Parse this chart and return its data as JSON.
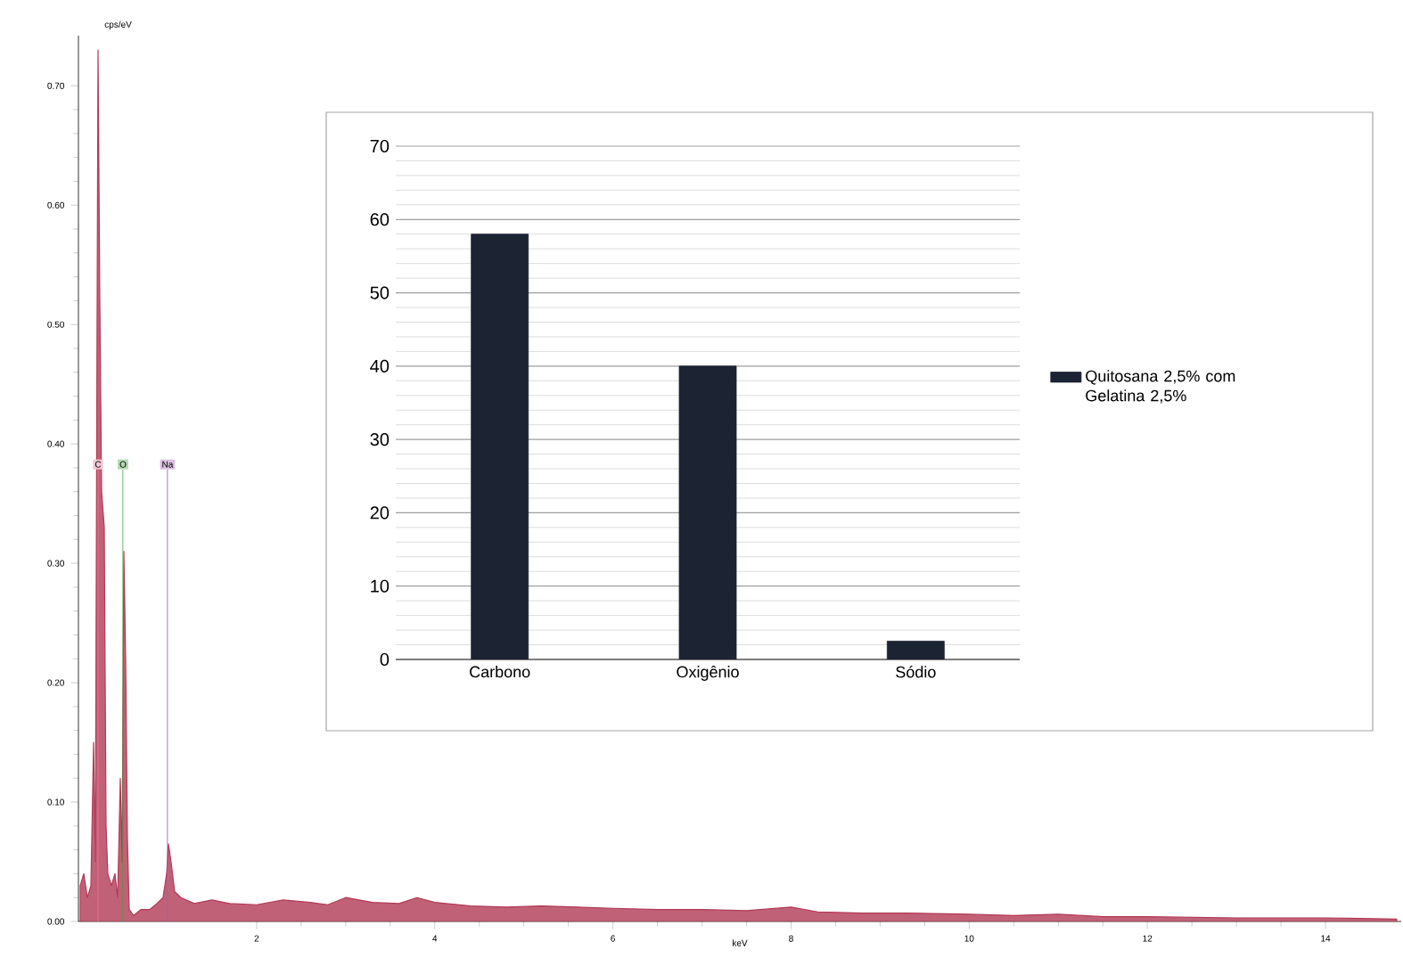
{
  "chart_data": [
    {
      "type": "area",
      "xlabel": "keV",
      "ylabel": "cps/eV",
      "color": "#b23a55",
      "xlim": [
        0,
        14.85
      ],
      "ylim": [
        0,
        0.742
      ],
      "xticks": [
        2,
        4,
        6,
        8,
        10,
        12,
        14
      ],
      "yticks": [
        {
          "value": 0,
          "label": "0.00"
        },
        {
          "value": 0.1,
          "label": "0.10"
        },
        {
          "value": 0.2,
          "label": "0.20"
        },
        {
          "value": 0.3,
          "label": "0.30"
        },
        {
          "value": 0.4,
          "label": "0.40"
        },
        {
          "value": 0.5,
          "label": "0.50"
        },
        {
          "value": 0.6,
          "label": "0.60"
        },
        {
          "value": 0.7,
          "label": "0.70"
        }
      ],
      "x": [
        0.02,
        0.06,
        0.1,
        0.14,
        0.17,
        0.19,
        0.21,
        0.22,
        0.24,
        0.26,
        0.29,
        0.31,
        0.33,
        0.37,
        0.41,
        0.44,
        0.47,
        0.49,
        0.51,
        0.53,
        0.55,
        0.57,
        0.62,
        0.7,
        0.8,
        0.88,
        0.95,
        0.99,
        1.01,
        1.04,
        1.08,
        1.15,
        1.3,
        1.5,
        1.7,
        2.0,
        2.3,
        2.6,
        2.8,
        3.0,
        3.3,
        3.6,
        3.8,
        4.0,
        4.4,
        4.8,
        5.2,
        5.6,
        6.0,
        6.5,
        7.0,
        7.5,
        8.0,
        8.3,
        8.8,
        9.3,
        10.0,
        10.5,
        11.0,
        11.5,
        12.0,
        13.0,
        14.0,
        14.8
      ],
      "values": [
        0.03,
        0.04,
        0.02,
        0.03,
        0.15,
        0.05,
        0.52,
        0.73,
        0.52,
        0.36,
        0.33,
        0.08,
        0.04,
        0.03,
        0.04,
        0.02,
        0.12,
        0.05,
        0.31,
        0.22,
        0.07,
        0.01,
        0.005,
        0.01,
        0.01,
        0.015,
        0.02,
        0.04,
        0.065,
        0.05,
        0.025,
        0.02,
        0.015,
        0.018,
        0.015,
        0.014,
        0.018,
        0.016,
        0.014,
        0.02,
        0.016,
        0.015,
        0.02,
        0.016,
        0.013,
        0.012,
        0.013,
        0.012,
        0.011,
        0.01,
        0.01,
        0.009,
        0.012,
        0.008,
        0.007,
        0.007,
        0.006,
        0.005,
        0.006,
        0.004,
        0.004,
        0.003,
        0.003,
        0.002
      ],
      "ref_lines": [
        {
          "axis": "x",
          "value": 0.22,
          "label": "C",
          "color": "#e07090"
        },
        {
          "axis": "x",
          "value": 0.5,
          "label": "O",
          "color": "#40a040"
        },
        {
          "axis": "x",
          "value": 1.0,
          "label": "Na",
          "color": "#a060b0"
        }
      ]
    },
    {
      "type": "bar",
      "categories": [
        "Carbono",
        "Oxigênio",
        "Sódio"
      ],
      "ylim": [
        0,
        70
      ],
      "yticks": [
        0,
        10,
        20,
        30,
        40,
        50,
        60,
        70
      ],
      "grid": "y",
      "legend": "right",
      "series": [
        {
          "name": "Quitosana 2,5% com Gelatina 2,5%",
          "color": "#1c2333",
          "values": [
            58,
            40,
            2.5
          ]
        }
      ]
    }
  ]
}
